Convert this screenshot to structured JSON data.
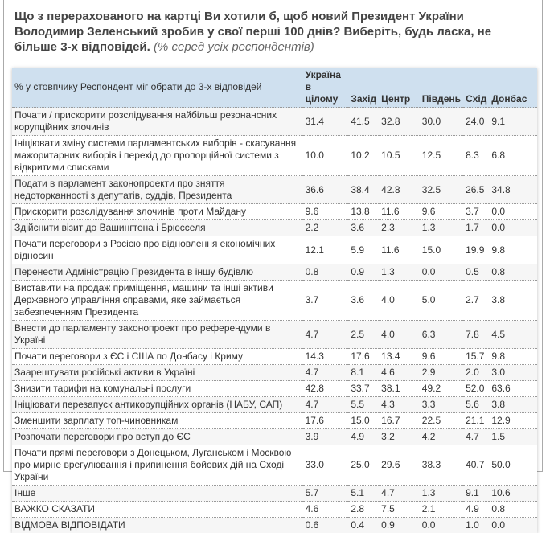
{
  "title": "Що з перерахованого на картці Ви хотили б, щоб новий Президент України Володимир Зеленський зробив у свої перші 100 днів? Виберіть, будь ласка, не більше 3-х відповідей.",
  "subtitle": "(% серед усіх респондентів)",
  "header": [
    "% у стовпчику Респондент міг обрати до 3-х відповідей",
    "Україна в цілому",
    "Захід",
    "Центр",
    "Південь",
    "Схід",
    "Донбас"
  ],
  "rows": [
    [
      "Почати / прискорити розслідування найбільш резонансних корупційних злочинів",
      "31.4",
      "41.5",
      "32.8",
      "30.0",
      "24.0",
      "9.1"
    ],
    [
      "Ініціювати зміну системи парламентських виборів - скасування мажоритарних виборів і перехід до пропорційної системи з відкритими списками",
      "10.0",
      "10.2",
      "10.5",
      "12.5",
      "8.3",
      "6.8"
    ],
    [
      "Подати в парламент законопроекти про зняття недоторканності з депутатів, суддів, Президента",
      "36.6",
      "38.4",
      "42.8",
      "32.5",
      "26.5",
      "34.8"
    ],
    [
      "Прискорити розслідування злочинів проти Майдану",
      "9.6",
      "13.8",
      "11.6",
      "9.6",
      "3.7",
      "0.0"
    ],
    [
      "Здійснити візит до Вашингтона і Брюсселя",
      "2.2",
      "3.6",
      "2.3",
      "1.3",
      "1.7",
      "0.0"
    ],
    [
      "Почати переговори з Росією про відновлення економічних відносин",
      "12.1",
      "5.9",
      "11.6",
      "15.0",
      "19.9",
      "9.8"
    ],
    [
      "Перенести Адміністрацію Президента в іншу будівлю",
      "0.8",
      "0.9",
      "1.3",
      "0.0",
      "0.5",
      "0.8"
    ],
    [
      "Виставити на продаж приміщення, машини та інші активи Державного управління справами, яке займається забезпеченням Президента",
      "3.7",
      "3.6",
      "4.0",
      "5.0",
      "2.7",
      "3.8"
    ],
    [
      "Внести до парламенту законопроект про референдуми в Україні",
      "4.7",
      "2.5",
      "4.0",
      "6.3",
      "7.8",
      "4.5"
    ],
    [
      "Почати переговори з ЄС і США по Донбасу і Криму",
      "14.3",
      "17.6",
      "13.4",
      "9.6",
      "15.7",
      "9.8"
    ],
    [
      "Заарештувати російські активи в Україні",
      "4.7",
      "8.1",
      "4.6",
      "2.9",
      "2.0",
      "3.0"
    ],
    [
      "Знизити тарифи на комунальні послуги",
      "42.8",
      "33.7",
      "38.1",
      "49.2",
      "52.0",
      "63.6"
    ],
    [
      "Ініціювати перезапуск антикорупційних органів (НАБУ, САП)",
      "4.7",
      "5.5",
      "4.3",
      "3.3",
      "5.6",
      "3.8"
    ],
    [
      "Зменшити зарплату топ-чиновникам",
      "17.6",
      "15.0",
      "16.7",
      "22.5",
      "21.1",
      "12.9"
    ],
    [
      "Розпочати переговори про вступ до ЄС",
      "3.9",
      "4.9",
      "3.2",
      "4.2",
      "4.7",
      "1.5"
    ],
    [
      "Почати прямі переговори з Донецьком, Луганськом і Москвою про мирне врегулювання і припинення бойових дій на Сході України",
      "33.0",
      "25.0",
      "29.6",
      "38.3",
      "40.7",
      "50.0"
    ],
    [
      "Інше",
      "5.7",
      "5.1",
      "4.7",
      "1.3",
      "9.1",
      "10.6"
    ],
    [
      "ВАЖКО СКАЗАТИ",
      "4.6",
      "2.8",
      "7.5",
      "2.1",
      "4.9",
      "0.8"
    ],
    [
      "ВІДМОВА ВІДПОВІДАТИ",
      "0.6",
      "0.4",
      "0.9",
      "0.0",
      "1.0",
      "0.0"
    ]
  ]
}
